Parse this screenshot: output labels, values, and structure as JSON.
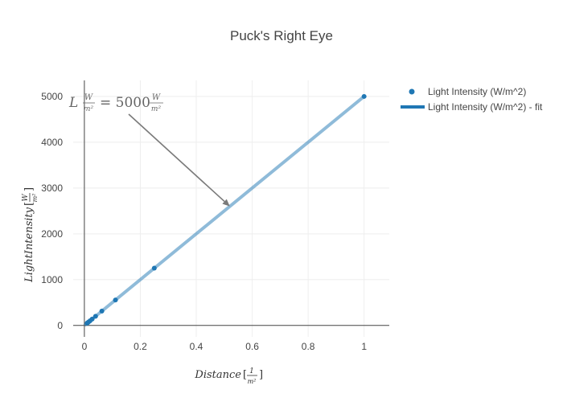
{
  "chart_data": {
    "type": "scatter",
    "title": "Puck's Right Eye",
    "xlabel": {
      "word": "Distance",
      "unit_num": "1",
      "unit_den": "m²"
    },
    "ylabel": {
      "word": "LightIntensity",
      "unit_num": "W",
      "unit_den": "m²"
    },
    "xlim": [
      -0.04,
      1.09
    ],
    "ylim": [
      -250,
      5350
    ],
    "xticks": [
      0,
      0.2,
      0.4,
      0.6,
      0.8,
      1
    ],
    "xtick_labels": [
      "0",
      "0.2",
      "0.4",
      "0.6",
      "0.8",
      "1"
    ],
    "yticks": [
      0,
      1000,
      2000,
      3000,
      4000,
      5000
    ],
    "ytick_labels": [
      "0",
      "1000",
      "2000",
      "3000",
      "4000",
      "5000"
    ],
    "grid": true,
    "legend_position": "top-right",
    "series": [
      {
        "name": "Light Intensity (W/m^2)",
        "mode": "markers",
        "color": "#1f77b4",
        "x": [
          1.0,
          0.25,
          0.1111,
          0.0625,
          0.04,
          0.0278,
          0.0204,
          0.0156,
          0.0123,
          0.01
        ],
        "y": [
          5000,
          1250,
          556,
          313,
          200,
          139,
          102,
          78,
          62,
          50
        ]
      },
      {
        "name": "Light Intensity (W/m^2) - fit",
        "mode": "lines",
        "color": "#1f77b4",
        "line_opacity": 0.5,
        "x": [
          0,
          1.0
        ],
        "y": [
          0,
          5000
        ]
      }
    ],
    "annotation": {
      "prefix": "L",
      "unit_num": "W",
      "unit_den": "m²",
      "equals_value": "= 5000",
      "arrow_target": {
        "x": 0.52,
        "y": 2600
      }
    }
  }
}
